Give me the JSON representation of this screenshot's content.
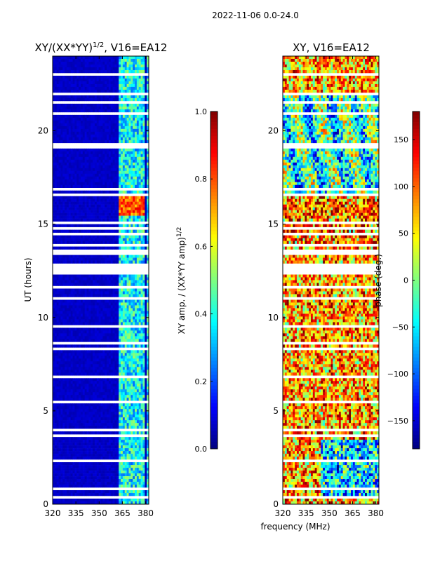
{
  "figure": {
    "suptitle": "2022-11-06 0.0-24.0",
    "shared_xlabel": "frequency (MHz)"
  },
  "colors": {
    "jet": [
      "#00007f",
      "#0000ff",
      "#007fff",
      "#00ffff",
      "#7fff7f",
      "#ffff00",
      "#ff7f00",
      "#ff0000",
      "#7f0000"
    ],
    "gap": "#ffffff"
  },
  "chart_data": [
    {
      "type": "heatmap",
      "title_main": "XY/(XX*YY)",
      "title_exp": "1/2",
      "title_rest": ", V16=EA12",
      "xlabel": "",
      "ylabel": "UT (hours)",
      "xlim": [
        320,
        382
      ],
      "ylim": [
        0,
        24
      ],
      "xticks": [
        320,
        335,
        350,
        365,
        380
      ],
      "xtick_labels": [
        "320",
        "335",
        "350",
        "365",
        "380"
      ],
      "yticks": [
        0,
        5,
        10,
        15,
        20
      ],
      "ytick_labels": [
        "0",
        "5",
        "10",
        "15",
        "20"
      ],
      "colorbar": {
        "label_main": "XY amp. / (XX*YY amp)",
        "label_exp": "1/2",
        "range": [
          0.0,
          1.0
        ],
        "ticks": [
          0.0,
          0.2,
          0.4,
          0.6,
          0.8,
          1.0
        ],
        "tick_labels": [
          "0.0",
          "0.2",
          "0.4",
          "0.6",
          "0.8",
          "1.0"
        ]
      },
      "bands": [
        {
          "x_from": 320,
          "x_to": 363,
          "value": 0.05
        },
        {
          "x_from": 363,
          "x_to": 382,
          "value": 0.3
        }
      ],
      "annotations": [
        "high amplitude patch near 15.5-16.5 h at 363-380 MHz"
      ]
    },
    {
      "type": "heatmap",
      "title": "XY, V16=EA12",
      "xlabel": "frequency (MHz)",
      "ylabel": "",
      "xlim": [
        320,
        382
      ],
      "ylim": [
        0,
        24
      ],
      "xticks": [
        320,
        335,
        350,
        365,
        380
      ],
      "xtick_labels": [
        "320",
        "335",
        "350",
        "365",
        "380"
      ],
      "yticks": [
        0,
        5,
        10,
        15,
        20
      ],
      "ytick_labels": [
        "0",
        "5",
        "10",
        "15",
        "20"
      ],
      "colorbar": {
        "label": "phase (deg.)",
        "range": [
          -180,
          180
        ],
        "ticks": [
          -150,
          -100,
          -50,
          0,
          50,
          100,
          150
        ],
        "tick_labels": [
          "−150",
          "−100",
          "−50",
          "0",
          "50",
          "100",
          "150"
        ]
      },
      "value_range_deg": [
        -180,
        180
      ]
    }
  ]
}
